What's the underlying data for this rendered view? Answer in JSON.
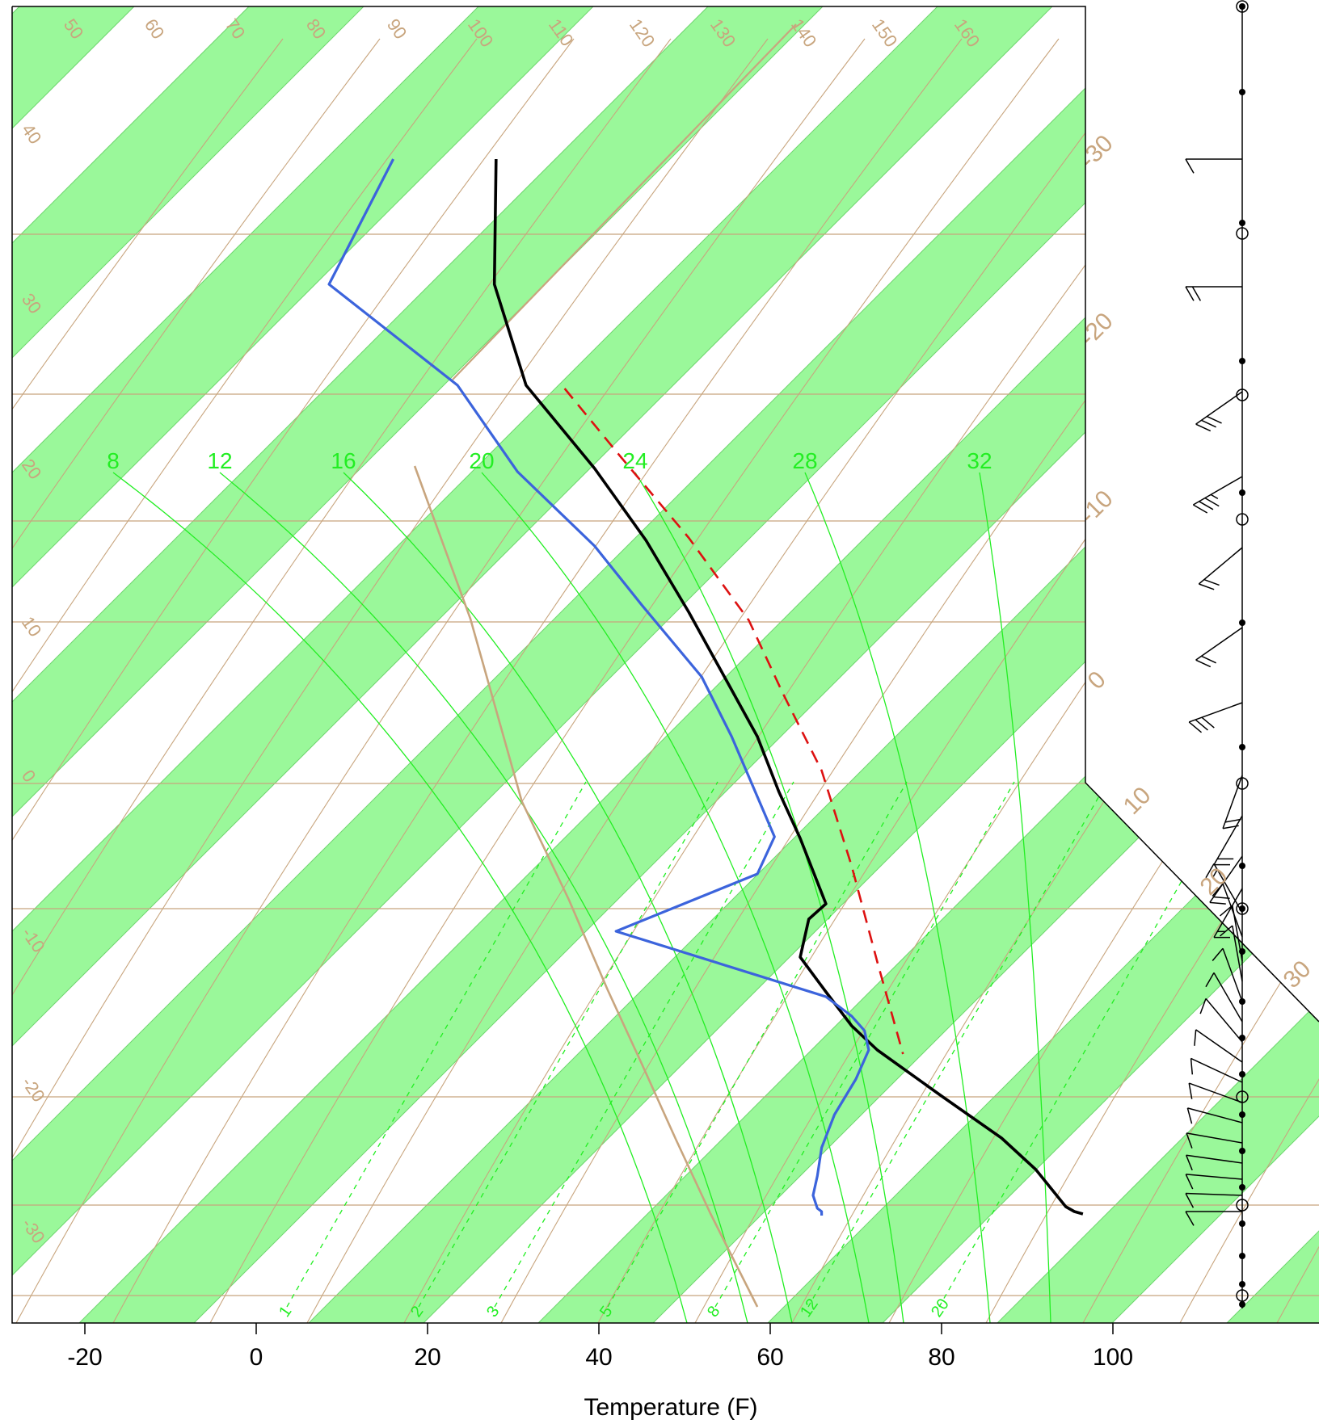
{
  "chart_data": {
    "type": "line",
    "chart_kind": "skew-t log-p sounding diagram",
    "xlabel": "Temperature (F)",
    "x_ticks": [
      -20,
      0,
      20,
      40,
      60,
      80,
      100
    ],
    "xlim": [
      -28.5,
      124
    ],
    "colors": {
      "band": "#9af89a",
      "isopleth": "#c8a57e",
      "mixing": "#22ee22",
      "temperature": "#000000",
      "dewpoint": "#3c64dc",
      "parcel": "#dd1111",
      "wetbulb_ref": "#c8a57e",
      "wind": "#000000"
    },
    "height_labels_left": [
      "40",
      "30",
      "20",
      "10",
      "0",
      "-10",
      "-20",
      "-30"
    ],
    "height_labels_top": [
      "50",
      "60",
      "70",
      "80",
      "90",
      "100",
      "110",
      "120",
      "130",
      "140",
      "150",
      "160"
    ],
    "skewed_labels_right": [
      "-30",
      "-20",
      "-10",
      "0",
      "10",
      "20",
      "30"
    ],
    "theta_e_labels": [
      "8",
      "12",
      "16",
      "20",
      "24",
      "28",
      "32"
    ],
    "mixing_ratio_labels": [
      "1",
      "2",
      "3",
      "5",
      "8",
      "12",
      "20"
    ],
    "series": [
      {
        "key": "temperature",
        "points": [
          [
            28.0,
            197
          ],
          [
            27.8,
            352
          ],
          [
            31.5,
            477
          ],
          [
            39.5,
            580
          ],
          [
            45.5,
            669
          ],
          [
            50.5,
            758
          ],
          [
            58.5,
            912
          ],
          [
            61.0,
            980
          ],
          [
            63.5,
            1038
          ],
          [
            66.5,
            1119
          ],
          [
            64.5,
            1138
          ],
          [
            63.5,
            1185
          ],
          [
            66.5,
            1228
          ],
          [
            69.5,
            1270
          ],
          [
            72.5,
            1300
          ],
          [
            80.0,
            1357
          ],
          [
            87.0,
            1409
          ],
          [
            91.0,
            1448
          ],
          [
            94.5,
            1494
          ],
          [
            95.5,
            1500
          ],
          [
            96.5,
            1503
          ]
        ]
      },
      {
        "key": "dewpoint",
        "points": [
          [
            16.0,
            197
          ],
          [
            8.5,
            352
          ],
          [
            23.5,
            477
          ],
          [
            30.5,
            584
          ],
          [
            39.5,
            676
          ],
          [
            45.0,
            749
          ],
          [
            52.0,
            838
          ],
          [
            55.5,
            912
          ],
          [
            60.5,
            1036
          ],
          [
            58.5,
            1082
          ],
          [
            42.0,
            1153
          ],
          [
            66.5,
            1234
          ],
          [
            69.5,
            1258
          ],
          [
            71.0,
            1276
          ],
          [
            71.5,
            1300
          ],
          [
            70.0,
            1336
          ],
          [
            67.5,
            1380
          ],
          [
            66.0,
            1421
          ],
          [
            65.5,
            1456
          ],
          [
            65.0,
            1480
          ],
          [
            65.5,
            1496
          ],
          [
            66.0,
            1500
          ],
          [
            66.0,
            1505
          ]
        ]
      },
      {
        "key": "parcel",
        "points": [
          [
            36.0,
            481
          ],
          [
            42.5,
            565
          ],
          [
            50.5,
            666
          ],
          [
            57.5,
            768
          ],
          [
            61.5,
            859
          ],
          [
            66.0,
            954
          ],
          [
            69.5,
            1072
          ],
          [
            72.5,
            1191
          ],
          [
            75.5,
            1305
          ]
        ]
      },
      {
        "key": "wetbulb_ref",
        "points": [
          [
            18.5,
            577
          ],
          [
            25.0,
            766
          ],
          [
            31.0,
            992
          ],
          [
            36.5,
            1114
          ],
          [
            41.0,
            1225
          ],
          [
            45.0,
            1317
          ],
          [
            49.0,
            1411
          ],
          [
            53.0,
            1502
          ],
          [
            58.5,
            1618
          ]
        ]
      }
    ],
    "wind_profile": {
      "barbs": [
        {
          "y": 197,
          "angle": 270,
          "dir_x": -1,
          "dir_y": 0,
          "flags": 0,
          "barbs": 1,
          "half": false
        },
        {
          "y": 355,
          "angle": 270,
          "flags": 0,
          "barbs": 2,
          "half": false
        },
        {
          "y": 485,
          "angle": 235,
          "flags": 0,
          "barbs": 3,
          "half": false
        },
        {
          "y": 590,
          "angle": 240,
          "flags": 0,
          "barbs": 3,
          "half": true
        },
        {
          "y": 678,
          "angle": 230,
          "flags": 0,
          "barbs": 2,
          "half": false
        },
        {
          "y": 777,
          "angle": 235,
          "flags": 0,
          "barbs": 2,
          "half": false
        },
        {
          "y": 870,
          "angle": 250,
          "flags": 0,
          "barbs": 3,
          "half": false
        },
        {
          "y": 960,
          "angle": 200,
          "flags": 0,
          "barbs": 2,
          "half": false
        },
        {
          "y": 1010,
          "angle": 210,
          "flags": 0,
          "barbs": 2,
          "half": false
        },
        {
          "y": 1060,
          "angle": 215,
          "flags": 0,
          "barbs": 2,
          "half": false
        },
        {
          "y": 1100,
          "angle": 210,
          "flags": 0,
          "barbs": 1,
          "half": true
        },
        {
          "y": 1130,
          "angle": 330,
          "flags": 0,
          "barbs": 1,
          "half": true
        },
        {
          "y": 1160,
          "angle": 340,
          "flags": 0,
          "barbs": 1,
          "half": false
        },
        {
          "y": 1190,
          "angle": 350,
          "flags": 0,
          "barbs": 1,
          "half": false
        },
        {
          "y": 1215,
          "angle": 350,
          "flags": 0,
          "barbs": 1,
          "half": false
        },
        {
          "y": 1240,
          "angle": 340,
          "flags": 0,
          "barbs": 1,
          "half": false
        },
        {
          "y": 1265,
          "angle": 330,
          "flags": 0,
          "barbs": 1,
          "half": false
        },
        {
          "y": 1290,
          "angle": 320,
          "flags": 0,
          "barbs": 1,
          "half": false
        },
        {
          "y": 1315,
          "angle": 305,
          "flags": 0,
          "barbs": 1,
          "half": false
        },
        {
          "y": 1340,
          "angle": 295,
          "flags": 0,
          "barbs": 1,
          "half": false
        },
        {
          "y": 1365,
          "angle": 290,
          "flags": 0,
          "barbs": 1,
          "half": false
        },
        {
          "y": 1390,
          "angle": 285,
          "flags": 0,
          "barbs": 1,
          "half": false
        },
        {
          "y": 1415,
          "angle": 280,
          "flags": 0,
          "barbs": 1,
          "half": false
        },
        {
          "y": 1440,
          "angle": 278,
          "flags": 0,
          "barbs": 1,
          "half": false
        },
        {
          "y": 1460,
          "angle": 275,
          "flags": 0,
          "barbs": 1,
          "half": false
        },
        {
          "y": 1480,
          "angle": 272,
          "flags": 0,
          "barbs": 1,
          "half": false
        },
        {
          "y": 1500,
          "angle": 270,
          "flags": 0,
          "barbs": 1,
          "half": false
        }
      ]
    }
  }
}
